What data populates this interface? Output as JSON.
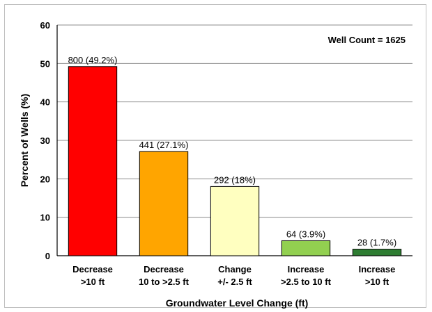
{
  "chart_data": {
    "type": "bar",
    "categories": [
      [
        "Decrease",
        ">10 ft"
      ],
      [
        "Decrease",
        "10 to >2.5 ft"
      ],
      [
        "Change",
        "+/- 2.5 ft"
      ],
      [
        "Increase",
        ">2.5 to 10 ft"
      ],
      [
        "Increase",
        ">10 ft"
      ]
    ],
    "values": [
      49.2,
      27.1,
      18,
      3.9,
      1.7
    ],
    "data_labels": [
      "800 (49.2%)",
      "441 (27.1%)",
      "292 (18%)",
      "64 (3.9%)",
      "28 (1.7%)"
    ],
    "colors": [
      "#ff0000",
      "#ffa500",
      "#ffffc0",
      "#92d050",
      "#2e7d32"
    ],
    "xlabel": "Groundwater Level Change (ft)",
    "ylabel": "Percent of Wells (%)",
    "ylim": [
      0,
      60
    ],
    "yticks": [
      0,
      10,
      20,
      30,
      40,
      50,
      60
    ],
    "annotation": "Well Count = 1625",
    "grid": true,
    "legend": "none"
  }
}
